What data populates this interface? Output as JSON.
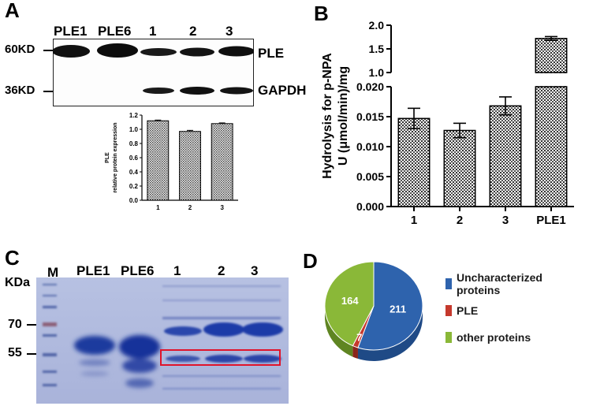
{
  "panel_a": {
    "letter": "A",
    "lanes": [
      "PLE1",
      "PLE6",
      "1",
      "2",
      "3"
    ],
    "markers": [
      "60KD",
      "36KD"
    ],
    "band_labels": [
      "PLE",
      "GAPDH"
    ]
  },
  "panel_b": {
    "letter": "B"
  },
  "panel_c": {
    "letter": "C",
    "lanes": [
      "M",
      "PLE1",
      "PLE6",
      "1",
      "2",
      "3"
    ],
    "unit": "KDa",
    "markers": [
      "70",
      "55"
    ]
  },
  "panel_d": {
    "letter": "D",
    "legend": [
      "Uncharacterized proteins",
      "PLE",
      "other proteins"
    ],
    "colors": [
      "#2e63ad",
      "#c5392d",
      "#8ab838"
    ]
  },
  "chart_data": [
    {
      "type": "bar",
      "panel": "A-inset",
      "categories": [
        "1",
        "2",
        "3"
      ],
      "values": [
        1.12,
        0.97,
        1.08
      ],
      "errors": [
        0.01,
        0.015,
        0.01
      ],
      "ylabel_line1": "PLE",
      "ylabel_line2": "relative protein expression",
      "ylim": [
        0,
        1.2
      ],
      "yticks": [
        "0.0",
        "0.2",
        "0.4",
        "0.6",
        "0.8",
        "1.0",
        "1.2"
      ]
    },
    {
      "type": "bar",
      "panel": "B",
      "categories": [
        "1",
        "2",
        "3",
        "PLE1"
      ],
      "values": [
        0.0147,
        0.0127,
        0.0168,
        1.72
      ],
      "errors": [
        0.0017,
        0.0012,
        0.0015,
        0.04
      ],
      "ylabel_line1": "Hydrolysis for p-NPA",
      "ylabel_line2": "U (μmol/min)/mg",
      "ylim_lower": [
        0,
        0.02
      ],
      "ylim_upper": [
        1.0,
        2.0
      ],
      "yticks_lower": [
        "0.000",
        "0.005",
        "0.010",
        "0.015",
        "0.020"
      ],
      "yticks_upper": [
        "1.0",
        "1.5",
        "2.0"
      ]
    },
    {
      "type": "pie",
      "panel": "D",
      "labels": [
        "Uncharacterized proteins",
        "PLE",
        "other proteins"
      ],
      "values": [
        211,
        7,
        164
      ],
      "value_labels": [
        "211",
        "7",
        "164"
      ]
    }
  ]
}
